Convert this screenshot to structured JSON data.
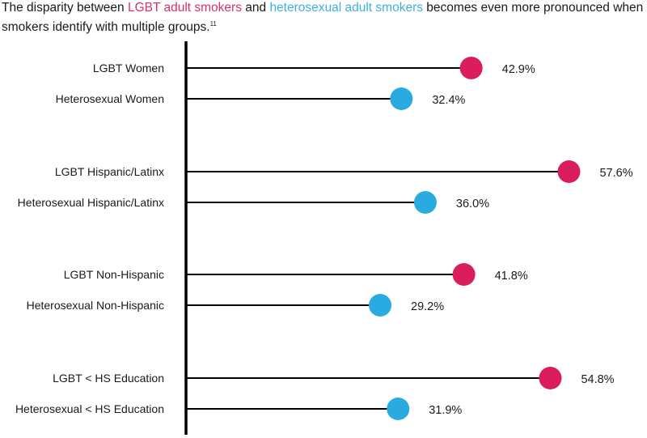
{
  "title": {
    "prefix": "The disparity between ",
    "lgbt_phrase": "LGBT adult smokers",
    "middle": " and ",
    "hetero_phrase": "heterosexual adult smokers",
    "suffix": " becomes even more pronounced when smokers identify with multiple groups.",
    "footnote": "11"
  },
  "colors": {
    "lgbt": "#db1d5c",
    "heterosexual": "#29abe2",
    "axis": "#000000",
    "stem": "#000000"
  },
  "chart_data": {
    "type": "lollipop",
    "title": "The disparity between LGBT adult smokers and heterosexual adult smokers becomes even more pronounced when smokers identify with multiple groups.",
    "xlabel": "",
    "ylabel": "",
    "xlim": [
      0,
      65
    ],
    "grid": false,
    "legend": "inline-title",
    "value_format": "percent-1dp",
    "groups": [
      {
        "name": "Women",
        "rows": [
          {
            "label": "LGBT Women",
            "series": "LGBT",
            "value": 42.9,
            "value_label": "42.9%"
          },
          {
            "label": "Heterosexual Women",
            "series": "Heterosexual",
            "value": 32.4,
            "value_label": "32.4%"
          }
        ]
      },
      {
        "name": "Hispanic/Latinx",
        "rows": [
          {
            "label": "LGBT Hispanic/Latinx",
            "series": "LGBT",
            "value": 57.6,
            "value_label": "57.6%"
          },
          {
            "label": "Heterosexual Hispanic/Latinx",
            "series": "Heterosexual",
            "value": 36.0,
            "value_label": "36.0%"
          }
        ]
      },
      {
        "name": "Non-Hispanic",
        "rows": [
          {
            "label": "LGBT Non-Hispanic",
            "series": "LGBT",
            "value": 41.8,
            "value_label": "41.8%"
          },
          {
            "label": "Heterosexual Non-Hispanic",
            "series": "Heterosexual",
            "value": 29.2,
            "value_label": "29.2%"
          }
        ]
      },
      {
        "name": "< HS Education",
        "rows": [
          {
            "label": "LGBT < HS Education",
            "series": "LGBT",
            "value": 54.8,
            "value_label": "54.8%"
          },
          {
            "label": "Heterosexual < HS Education",
            "series": "Heterosexual",
            "value": 31.9,
            "value_label": "31.9%"
          }
        ]
      }
    ],
    "series": [
      {
        "name": "LGBT",
        "values": [
          42.9,
          57.6,
          41.8,
          54.8
        ]
      },
      {
        "name": "Heterosexual",
        "values": [
          32.4,
          36.0,
          29.2,
          31.9
        ]
      }
    ],
    "categories": [
      "Women",
      "Hispanic/Latinx",
      "Non-Hispanic",
      "< HS Education"
    ]
  }
}
